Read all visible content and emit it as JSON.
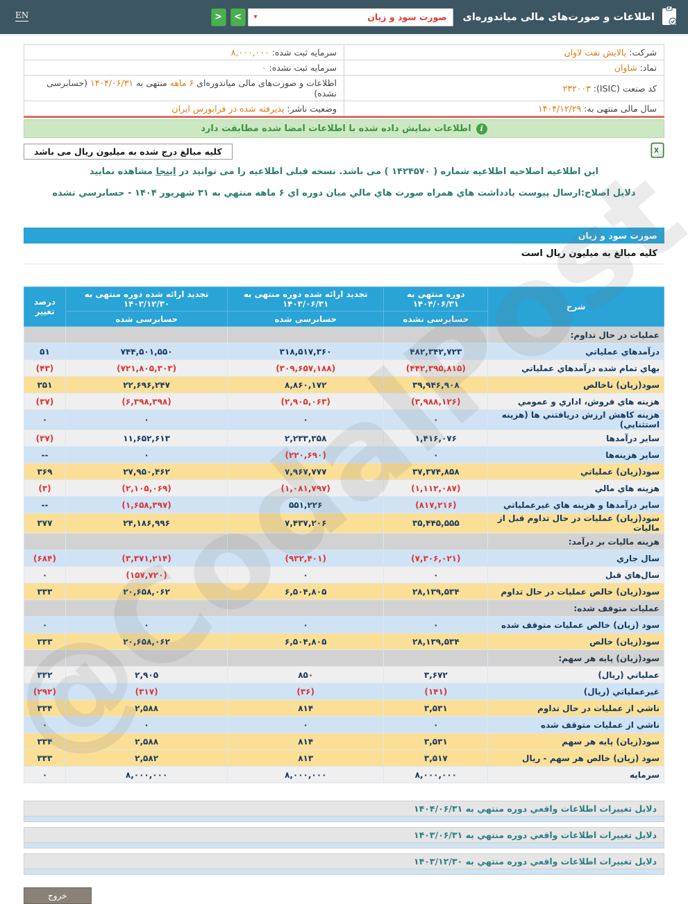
{
  "topbar": {
    "en_label": "EN",
    "title": "اطلاعات و صورت‌های مالی میاندوره‌ای",
    "report_select_value": "صورت سود و زیان",
    "caret": "▾",
    "back_label": "<",
    "forward_label": ">"
  },
  "company": {
    "r1": {
      "label": "شرکت:",
      "value": "پالایش نفت لاوان"
    },
    "r2": {
      "label": "نماد:",
      "value": "شاوان"
    },
    "r3": {
      "label": "کد صنعت (ISIC):",
      "value": "۲۳۲۰۰۳"
    },
    "r4": {
      "label": "سال مالی منتهی به:",
      "value": "۱۴۰۴/۱۲/۲۹"
    },
    "l1": {
      "label": "سرمایه ثبت شده:",
      "value": "۸,۰۰۰,۰۰۰"
    },
    "l2": {
      "label": "سرمایه ثبت نشده:",
      "value": "۰"
    },
    "l3": {
      "pre": "اطلاعات و صورت‌های مالی میاندوره‌ای",
      "hl1": "۶ ماهه",
      "mid": "منتهی به",
      "hl2": "۱۴۰۴/۰۶/۳۱",
      "suf": "(حسابرسی نشده)"
    },
    "l4": {
      "label": "وضعیت ناشر:",
      "value": "پذیرفته شده در فرابورس ایران"
    }
  },
  "banner": {
    "text": "اطلاعات نمایش داده شده با اطلاعات امضا شده مطابقت دارد",
    "icon_glyph": "i"
  },
  "million_note": "کلیه مبالغ درج شده به میلیون ریال می باشد",
  "notes": {
    "amendment_pre": "این اطلاعیه اصلاحیه اطلاعیه شماره ( ۱۴۲۴۵۷۰ ) می باشد. نسخه قبلی اطلاعیه را می توانید در",
    "amendment_link": "اینجا",
    "amendment_post": "مشاهده نمایید",
    "reason": "دلایل اصلاح:ارسال پیوست یادداشت هاي همراه صورت هاي مالي میان دوره اي ۶ ماهه منتهي به ۳۱ شهریور ۱۴۰۴ - حسابرسي نشده"
  },
  "statement": {
    "band_title": "صورت سود و زیان",
    "unit_note": "کلیه مبالغ به میلیون ریال است"
  },
  "table": {
    "columns": {
      "desc": "شرح",
      "c1_title": "دوره منتهی به ۱۴۰۴/۰۶/۳۱",
      "c1_sub": "حسابرسی نشده",
      "c2_title": "تجدید ارائه شده دوره منتهی به ۱۴۰۳/۰۶/۳۱",
      "c2_sub": "حسابرسی شده",
      "c3_title": "تجدید ارائه شده دوره منتهی به ۱۴۰۳/۱۲/۳۰",
      "c3_sub": "حسابرسی شده",
      "pct": "درصد تغییر"
    },
    "rows": [
      {
        "section": true,
        "label": "عملیات در حال تداوم:"
      },
      {
        "label": "درآمدهاي عملياتي",
        "bg": "blue",
        "values": [
          "۴۸۲,۳۴۲,۷۲۳",
          "۳۱۸,۵۱۷,۳۶۰",
          "۷۴۴,۵۰۱,۵۵۰",
          "۵۱"
        ]
      },
      {
        "label": "بهاي تمام شده درآمدهاي عملياتي",
        "bg": "gray",
        "values": [
          "(۴۴۲,۳۹۵,۸۱۵)",
          "(۳۰۹,۶۵۷,۱۸۸)",
          "(۷۲۱,۸۰۵,۳۰۳)",
          "(۴۳)"
        ]
      },
      {
        "label": "سود(زيان) ناخالص",
        "bg": "yellow",
        "values": [
          "۳۹,۹۴۶,۹۰۸",
          "۸,۸۶۰,۱۷۲",
          "۲۲,۶۹۶,۲۴۷",
          "۳۵۱"
        ]
      },
      {
        "label": "هزينه هاي فروش، اداري و عمومي",
        "bg": "gray",
        "values": [
          "(۳,۹۸۸,۱۲۶)",
          "(۲,۹۰۵,۰۶۳)",
          "(۶,۳۹۸,۳۹۸)",
          "(۳۷)"
        ]
      },
      {
        "label": "هزينه کاهش ارزش دريافتني ها (هزينه استثنايي)",
        "bg": "blue",
        "values": [
          "۰",
          "۰",
          "۰",
          "۰"
        ]
      },
      {
        "label": "ساير درآمدها",
        "bg": "gray",
        "values": [
          "۱,۴۱۶,۰۷۶",
          "۲,۲۳۳,۳۵۸",
          "۱۱,۶۵۲,۶۱۳",
          "(۳۷)"
        ]
      },
      {
        "label": "ساير هزينه‌ها",
        "bg": "blue",
        "values": [
          "۰",
          "(۲۲۰,۶۹۰)",
          "۰",
          "--"
        ]
      },
      {
        "label": "سود(زيان) عملياتي",
        "bg": "yellow",
        "values": [
          "۳۷,۳۷۴,۸۵۸",
          "۷,۹۶۷,۷۷۷",
          "۲۷,۹۵۰,۴۶۲",
          "۳۶۹"
        ]
      },
      {
        "label": "هزينه هاي مالي",
        "bg": "gray",
        "values": [
          "(۱,۱۱۲,۰۸۷)",
          "(۱,۰۸۱,۷۹۷)",
          "(۲,۱۰۵,۰۶۹)",
          "(۳)"
        ]
      },
      {
        "label": "ساير درآمدها و هزينه هاي غيرعملياتي",
        "bg": "blue",
        "values": [
          "(۸۱۷,۲۱۶)",
          "۵۵۱,۲۲۶",
          "(۱,۶۵۸,۳۹۷)",
          "--"
        ]
      },
      {
        "label": "سود(زيان) عمليات در حال تداوم قبل از ماليات",
        "bg": "yellow",
        "values": [
          "۳۵,۴۴۵,۵۵۵",
          "۷,۴۳۷,۲۰۶",
          "۲۴,۱۸۶,۹۹۶",
          "۳۷۷"
        ]
      },
      {
        "section": true,
        "label": "هزينه ماليات بر درآمد:"
      },
      {
        "label": "سال جاري",
        "bg": "blue",
        "values": [
          "(۷,۳۰۶,۰۲۱)",
          "(۹۳۲,۴۰۱)",
          "(۳,۳۷۱,۲۱۴)",
          "(۶۸۴)"
        ]
      },
      {
        "label": "سال‌هاي قبل",
        "bg": "gray",
        "values": [
          "۰",
          "۰",
          "(۱۵۷,۷۲۰)",
          "۰"
        ]
      },
      {
        "label": "سود(زيان) خالص عمليات در حال تداوم",
        "bg": "yellow",
        "values": [
          "۲۸,۱۳۹,۵۳۴",
          "۶,۵۰۴,۸۰۵",
          "۲۰,۶۵۸,۰۶۲",
          "۳۳۳"
        ]
      },
      {
        "section": true,
        "label": "عمليات متوقف شده:"
      },
      {
        "label": "سود (زيان) خالص عمليات متوقف شده",
        "bg": "blue",
        "values": [
          "۰",
          "۰",
          "۰",
          "۰"
        ]
      },
      {
        "label": "سود(زيان) خالص",
        "bg": "yellow",
        "values": [
          "۲۸,۱۳۹,۵۳۴",
          "۶,۵۰۴,۸۰۵",
          "۲۰,۶۵۸,۰۶۲",
          "۳۳۳"
        ]
      },
      {
        "section": true,
        "label": "سود(زيان) پايه هر سهم:"
      },
      {
        "label": "عملياتي (ريال)",
        "bg": "gray",
        "values": [
          "۳,۶۷۲",
          "۸۵۰",
          "۲,۹۰۵",
          "۳۳۲"
        ]
      },
      {
        "label": "غيرعملياتي (ريال)",
        "bg": "blue",
        "values": [
          "(۱۴۱)",
          "(۳۶)",
          "(۳۱۷)",
          "(۲۹۲)"
        ]
      },
      {
        "label": "ناشي از عمليات در حال تداوم",
        "bg": "yellow",
        "values": [
          "۳,۵۳۱",
          "۸۱۴",
          "۲,۵۸۸",
          "۳۳۴"
        ]
      },
      {
        "label": "ناشي از عمليات متوقف شده",
        "bg": "blue",
        "values": [
          "۰",
          "۰",
          "۰",
          "۰"
        ]
      },
      {
        "label": "سود(زيان) پايه هر سهم",
        "bg": "yellow",
        "values": [
          "۳,۵۳۱",
          "۸۱۴",
          "۲,۵۸۸",
          "۳۳۴"
        ]
      },
      {
        "label": "سود (زيان) خالص هر سهم - ريال",
        "bg": "yellow",
        "values": [
          "۳,۵۱۷",
          "۸۱۳",
          "۲,۵۸۲",
          "۳۳۳"
        ]
      },
      {
        "label": "سرمايه",
        "bg": "gray",
        "values": [
          "۸,۰۰۰,۰۰۰",
          "۸,۰۰۰,۰۰۰",
          "۸,۰۰۰,۰۰۰",
          "۰"
        ]
      }
    ]
  },
  "reasons": [
    "دلايل تغييرات اطلاعات واقعي دوره منتهي به ۱۴۰۴/۰۶/۳۱",
    "دلايل تغييرات اطلاعات واقعي دوره منتهي به ۱۴۰۳/۰۶/۳۱",
    "دلايل تغييرات اطلاعات واقعي دوره منتهي به ۱۴۰۳/۱۲/۳۰"
  ],
  "exit_label": "خروج",
  "watermark": "@CodalPost",
  "colors": {
    "topbar": "#3d5663",
    "accent_blue": "#2aa3d6",
    "row_blue": "#cfe3f4",
    "row_yellow": "#fbdf96",
    "row_gray": "#efefef",
    "negative": "#e03131",
    "orange_value": "#e07b12",
    "teal_note": "#2c7b72",
    "green_banner": "#cbe8c3"
  }
}
